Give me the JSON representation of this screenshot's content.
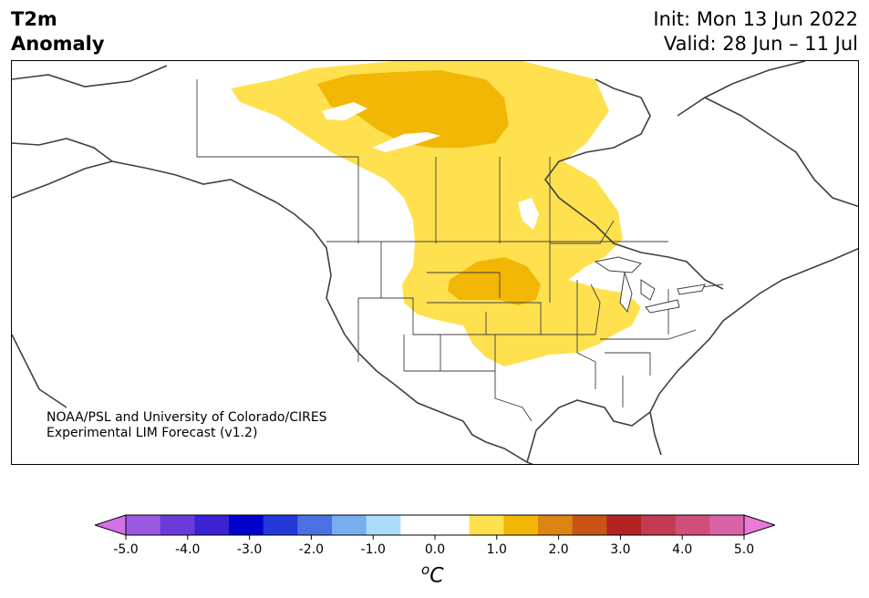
{
  "header": {
    "title_line1": "T2m",
    "title_line2": "Anomaly",
    "init": "Init: Mon 13 Jun 2022",
    "valid": "Valid: 28 Jun – 11 Jul"
  },
  "map": {
    "credit_line1": "NOAA/PSL and University of Colorado/CIRES",
    "credit_line2": "Experimental LIM Forecast (v1.2)",
    "anomaly_colors": {
      "weak_warm": "#ffe14f",
      "moderate_warm": "#f2b705"
    }
  },
  "colorbar": {
    "unit": "C",
    "unit_prefix": "o",
    "tick_labels": [
      "-5.0",
      "-4.0",
      "-3.0",
      "-2.0",
      "-1.0",
      "0.0",
      "1.0",
      "2.0",
      "3.0",
      "4.0",
      "5.0"
    ],
    "colors": [
      "#d670e6",
      "#9b59df",
      "#6a3bd8",
      "#3b22d2",
      "#0000cd",
      "#2438d8",
      "#4a70e2",
      "#77aef0",
      "#acdcf9",
      "#ffffff",
      "#ffffff",
      "#ffe14f",
      "#f2b705",
      "#dd8511",
      "#c85416",
      "#b22424",
      "#c43a52",
      "#cf4e7a",
      "#da62a8",
      "#e97ad9"
    ]
  }
}
